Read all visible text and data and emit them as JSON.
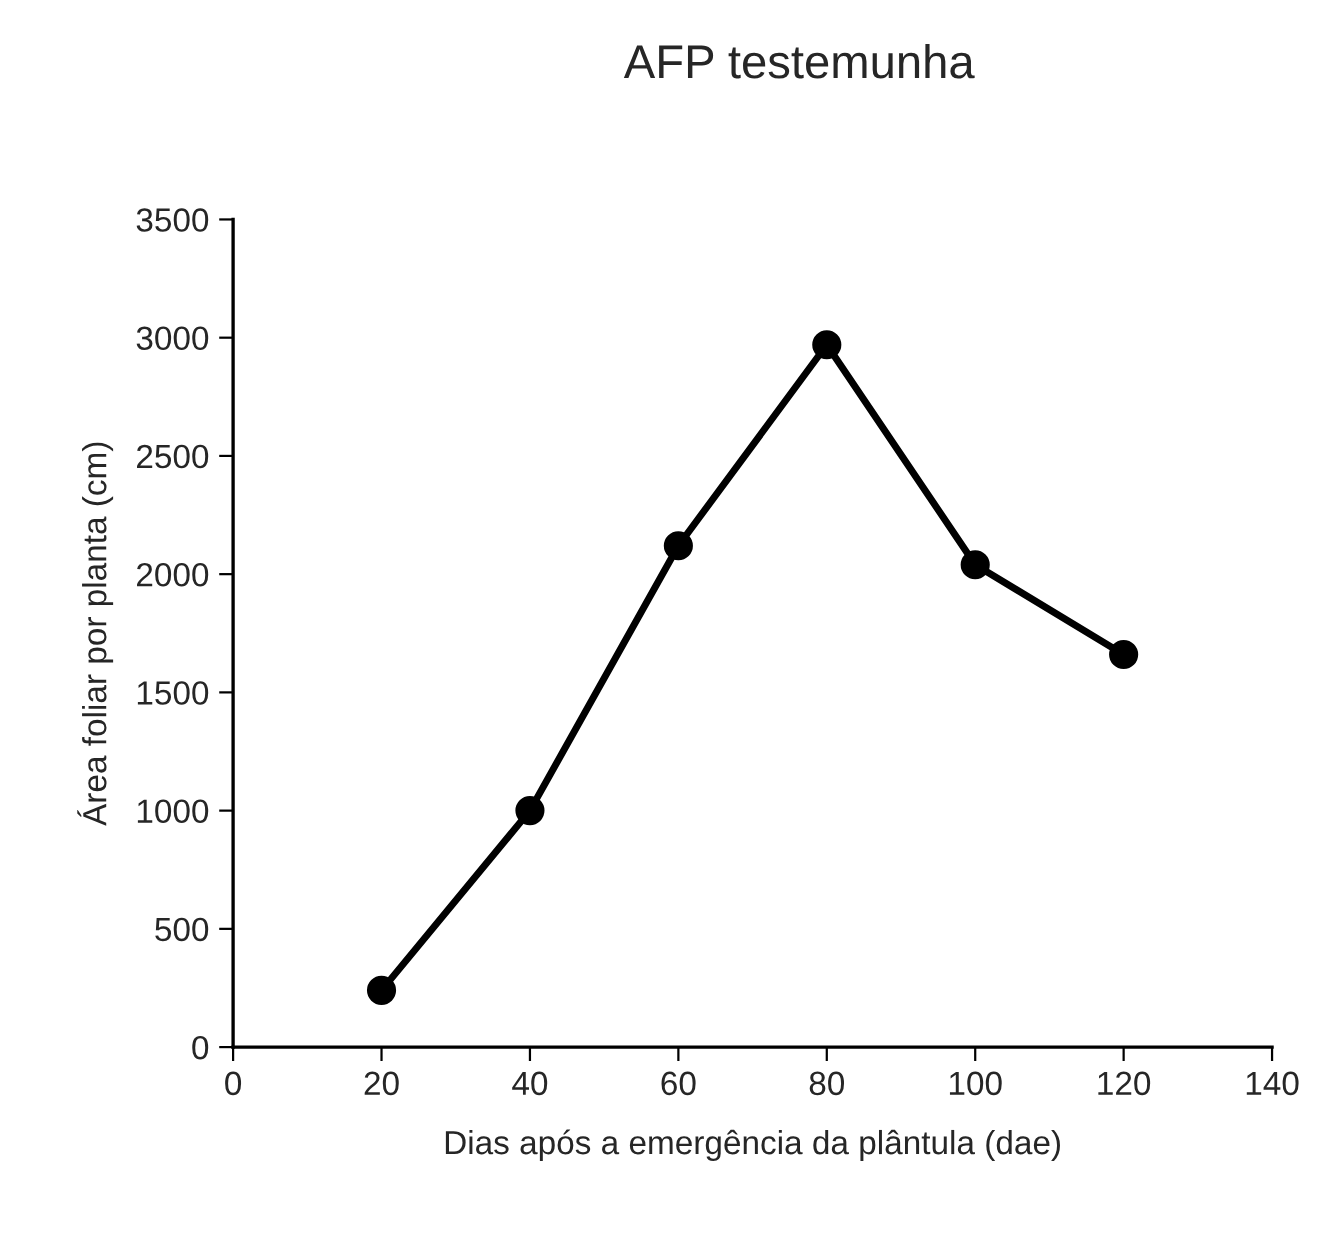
{
  "chart_data": {
    "type": "line",
    "title": "AFP testemunha",
    "xlabel": "Dias após a emergência da plântula (dae)",
    "ylabel": "Área foliar por planta (cm)",
    "x": [
      20,
      40,
      60,
      80,
      100,
      120
    ],
    "series": [
      {
        "color": "#000000",
        "values": [
          240,
          1000,
          2120,
          2970,
          2040,
          1660
        ]
      }
    ],
    "xlim": [
      0,
      140
    ],
    "xticks": [
      0,
      20,
      40,
      60,
      80,
      100,
      120,
      140
    ],
    "ylim": [
      0,
      3500
    ],
    "yticks": [
      0,
      500,
      1000,
      1500,
      2000,
      2500,
      3000,
      3500
    ],
    "marker": "circle",
    "line_style": "solid",
    "grid": false,
    "legend": false
  }
}
